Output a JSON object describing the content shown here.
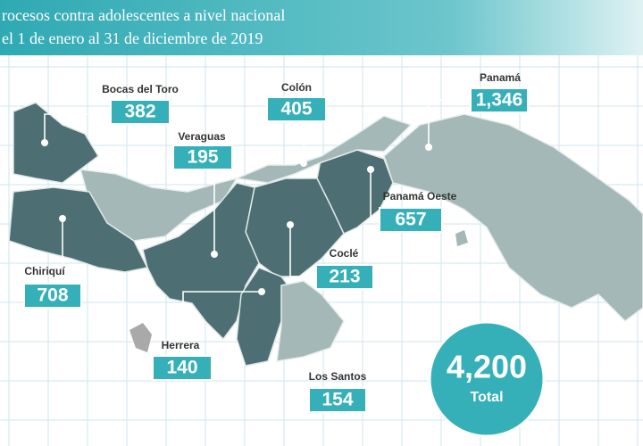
{
  "header": {
    "title_line1": "rocesos contra adolescentes a nivel nacional",
    "title_line2": "el 1 de enero al 31 de diciembre de 2019"
  },
  "regions": [
    {
      "name": "Bocas del Toro",
      "value": "382"
    },
    {
      "name": "Colón",
      "value": "405"
    },
    {
      "name": "Panamá",
      "value": "1,346"
    },
    {
      "name": "Veraguas",
      "value": "195"
    },
    {
      "name": "Panamá Oeste",
      "value": "657"
    },
    {
      "name": "Chiriquí",
      "value": "708"
    },
    {
      "name": "Coclé",
      "value": "213"
    },
    {
      "name": "Herrera",
      "value": "140"
    },
    {
      "name": "Los Santos",
      "value": "154"
    }
  ],
  "total": {
    "value": "4,200",
    "label": "Total"
  }
}
